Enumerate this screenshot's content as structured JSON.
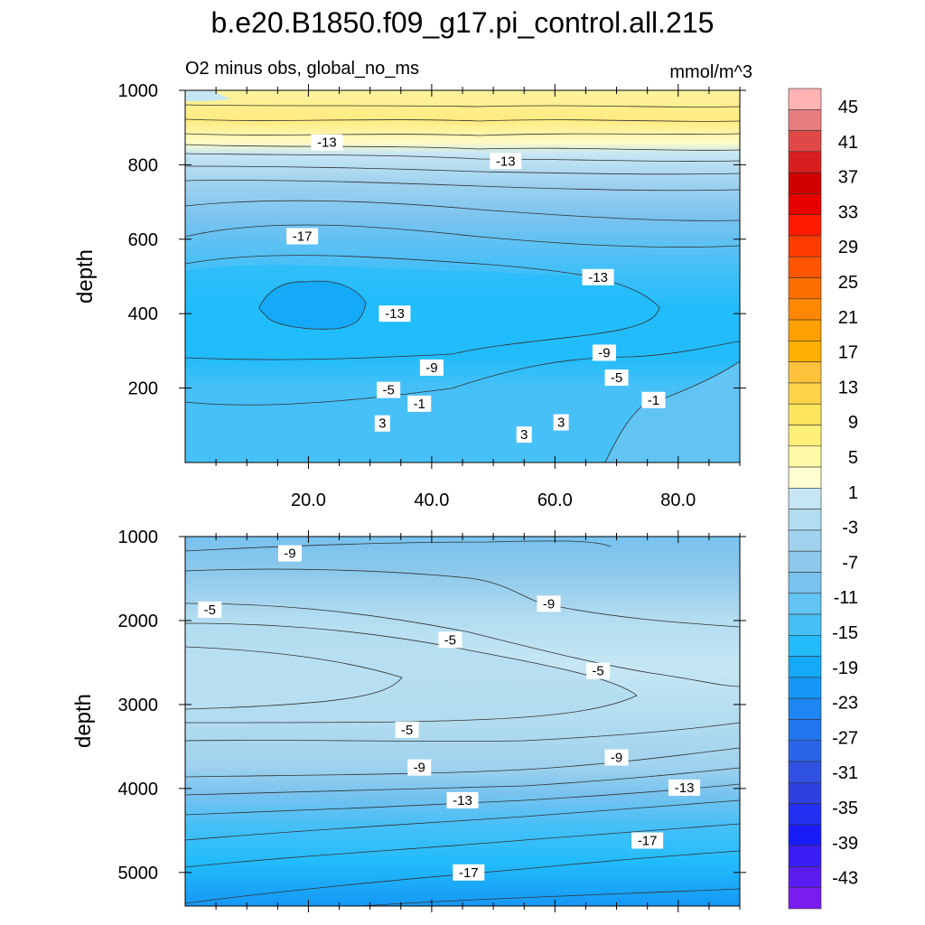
{
  "chart_data": {
    "type": "contour",
    "title": "b.e20.B1850.f09_g17.pi_control.all.215",
    "subtitle_left": "O2 minus obs, global_no_ms",
    "subtitle_right": "mmol/m^3",
    "ylabel": "depth",
    "x_ticks": [
      "20.0",
      "40.0",
      "60.0",
      "80.0"
    ],
    "xlim": [
      0,
      90
    ],
    "panels": [
      {
        "name": "upper",
        "ylim": [
          1000,
          0
        ],
        "y_ticks": [
          "200",
          "400",
          "600",
          "800",
          "1000"
        ],
        "contour_labels": [
          {
            "value": "3",
            "x": 32,
            "y": 105
          },
          {
            "value": "3",
            "x": 55,
            "y": 75
          },
          {
            "value": "3",
            "x": 61,
            "y": 108
          },
          {
            "value": "-1",
            "x": 38,
            "y": 158
          },
          {
            "value": "-1",
            "x": 76,
            "y": 168
          },
          {
            "value": "-5",
            "x": 33,
            "y": 195
          },
          {
            "value": "-5",
            "x": 70,
            "y": 228
          },
          {
            "value": "-9",
            "x": 40,
            "y": 255
          },
          {
            "value": "-9",
            "x": 68,
            "y": 295
          },
          {
            "value": "-13",
            "x": 34,
            "y": 400
          },
          {
            "value": "-13",
            "x": 67,
            "y": 498
          },
          {
            "value": "-17",
            "x": 19,
            "y": 608
          },
          {
            "value": "-13",
            "x": 52,
            "y": 810
          },
          {
            "value": "-13",
            "x": 23,
            "y": 860
          }
        ]
      },
      {
        "name": "lower",
        "ylim": [
          1000,
          5400
        ],
        "y_ticks": [
          "1000",
          "2000",
          "3000",
          "4000",
          "5000"
        ],
        "contour_labels": [
          {
            "value": "-9",
            "x": 17,
            "y": 1200
          },
          {
            "value": "-5",
            "x": 4,
            "y": 1870
          },
          {
            "value": "-9",
            "x": 59,
            "y": 1800
          },
          {
            "value": "-5",
            "x": 43,
            "y": 2230
          },
          {
            "value": "-5",
            "x": 67,
            "y": 2600
          },
          {
            "value": "-5",
            "x": 36,
            "y": 3300
          },
          {
            "value": "-9",
            "x": 38,
            "y": 3750
          },
          {
            "value": "-9",
            "x": 70,
            "y": 3630
          },
          {
            "value": "-13",
            "x": 45,
            "y": 4140
          },
          {
            "value": "-13",
            "x": 81,
            "y": 3990
          },
          {
            "value": "-17",
            "x": 46,
            "y": 5000
          },
          {
            "value": "-17",
            "x": 75,
            "y": 4620
          }
        ]
      }
    ],
    "colorbar": {
      "labels": [
        "45",
        "41",
        "37",
        "33",
        "29",
        "25",
        "21",
        "17",
        "13",
        "9",
        "5",
        "1",
        "-3",
        "-7",
        "-11",
        "-15",
        "-19",
        "-23",
        "-27",
        "-31",
        "-35",
        "-39",
        "-43"
      ],
      "colors": [
        "#ffb3b3",
        "#e87d7d",
        "#e04848",
        "#d81e1e",
        "#d00000",
        "#e80000",
        "#ff1a00",
        "#ff3c00",
        "#ff5500",
        "#ff6e00",
        "#ff8800",
        "#ffa000",
        "#ffb000",
        "#ffc23a",
        "#ffd248",
        "#ffe55c",
        "#fff07a",
        "#fffaa8",
        "#fffed0",
        "#c6e6f4",
        "#b2dcf0",
        "#a0d2ee",
        "#8ec9ec",
        "#77c2ef",
        "#62c4f3",
        "#47c0f7",
        "#22bcfb",
        "#14aaf8",
        "#1598f5",
        "#1e86f2",
        "#2175ee",
        "#2a64e8",
        "#2f52e2",
        "#2f40e0",
        "#2230f2",
        "#1a1cf7",
        "#3a1cf4",
        "#5a1cf0",
        "#7a1cf0"
      ]
    }
  }
}
